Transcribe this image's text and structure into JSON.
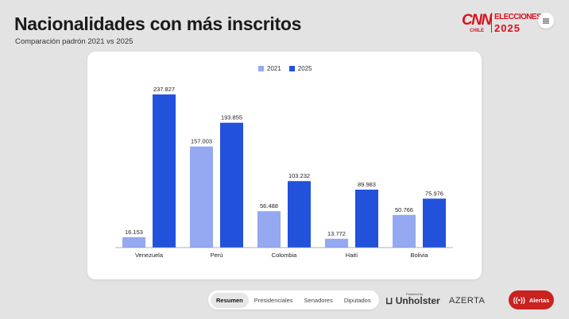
{
  "header": {
    "title": "Nacionalidades con más inscritos",
    "subtitle": "Comparación padrón 2021 vs 2025"
  },
  "logo": {
    "brand": "CNN",
    "country": "CHILE",
    "event": "ELECCIONES",
    "year": "2025"
  },
  "menu": {
    "icon": "hamburger-menu-icon"
  },
  "colors": {
    "series_2021": "#94a9f2",
    "series_2025": "#2251dc",
    "alert": "#c9221f",
    "brand_red": "#d8111f"
  },
  "chart_data": {
    "type": "bar",
    "title": "Nacionalidades con más inscritos",
    "xlabel": "",
    "ylabel": "",
    "ylim": [
      0,
      240000
    ],
    "grid": false,
    "legend_position": "top-center",
    "categories": [
      "Venezuela",
      "Perú",
      "Colombia",
      "Haití",
      "Bolivia"
    ],
    "series": [
      {
        "name": "2021",
        "values": [
          16153,
          157003,
          56488,
          13772,
          50766
        ],
        "labels": [
          "16.153",
          "157.003",
          "56.488",
          "13.772",
          "50.766"
        ]
      },
      {
        "name": "2025",
        "values": [
          237827,
          193855,
          103232,
          89983,
          75976
        ],
        "labels": [
          "237.827",
          "193.855",
          "103.232",
          "89.983",
          "75.976"
        ]
      }
    ]
  },
  "bottom_nav": {
    "tabs": [
      {
        "label": "Resumen",
        "active": true
      },
      {
        "label": "Presidenciales",
        "active": false
      },
      {
        "label": "Senadores",
        "active": false
      },
      {
        "label": "Diputados",
        "active": false
      }
    ]
  },
  "footer": {
    "powered_by": "Powered by",
    "unholster": "Unholster",
    "azerta": "AZERTA",
    "alert_label": "Alertas"
  }
}
